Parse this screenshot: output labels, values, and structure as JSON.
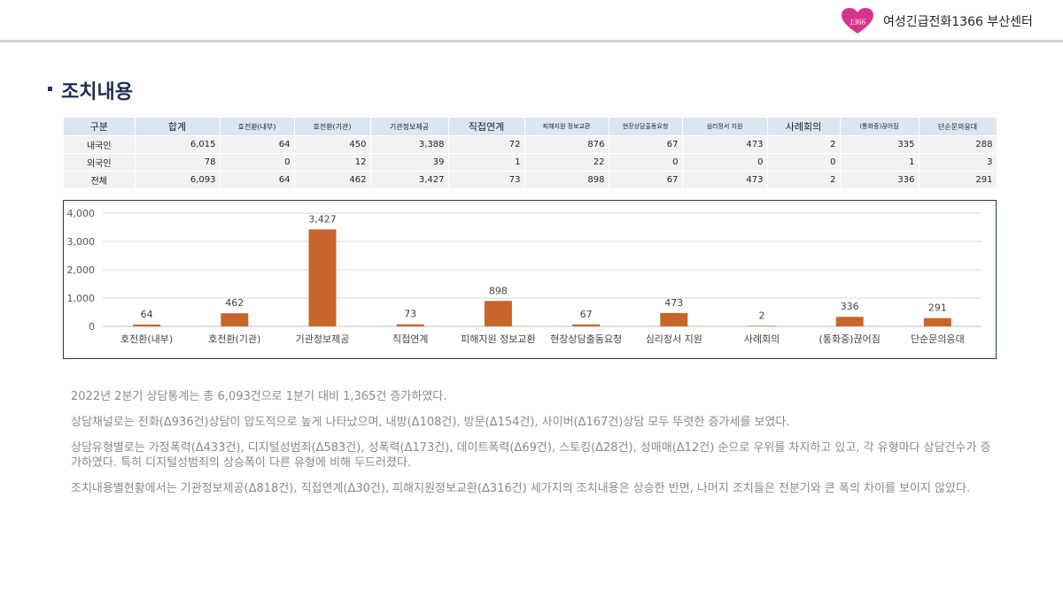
{
  "header": {
    "org_name": "여성긴급전화1366 부산센터",
    "logo_text": "1366"
  },
  "section": {
    "title": "조치내용"
  },
  "table": {
    "headers": [
      "구분",
      "합계",
      "호전환(내부)",
      "호전환(기관)",
      "기관정보제공",
      "직접연계",
      "피해지원 정보교환",
      "현장상담출동요청",
      "심리정서 지원",
      "사례회의",
      "(통화중)끊어짐",
      "단순문의응대"
    ],
    "rows": [
      {
        "label": "내국인",
        "cells": [
          "6,015",
          "64",
          "450",
          "3,388",
          "72",
          "876",
          "67",
          "473",
          "2",
          "335",
          "288"
        ]
      },
      {
        "label": "외국인",
        "cells": [
          "78",
          "0",
          "12",
          "39",
          "1",
          "22",
          "0",
          "0",
          "0",
          "1",
          "3"
        ]
      },
      {
        "label": "전체",
        "cells": [
          "6,093",
          "64",
          "462",
          "3,427",
          "73",
          "898",
          "67",
          "473",
          "2",
          "336",
          "291"
        ]
      }
    ]
  },
  "chart_data": {
    "type": "bar",
    "categories": [
      "호전환(내부)",
      "호전환(기관)",
      "기관정보제공",
      "직접연계",
      "피해지원 정보교환",
      "현장상담출동요청",
      "심리정서 지원",
      "사례회의",
      "(통화중)끊어짐",
      "단순문의응대"
    ],
    "values": [
      64,
      462,
      3427,
      73,
      898,
      67,
      473,
      2,
      336,
      291
    ],
    "value_labels": [
      "64",
      "462",
      "3,427",
      "73",
      "898",
      "67",
      "473",
      "2",
      "336",
      "291"
    ],
    "y_ticks": [
      "0",
      "1,000",
      "2,000",
      "3,000",
      "4,000"
    ],
    "ylim": [
      0,
      4000
    ],
    "grid": true,
    "bar_color": "#c8652a"
  },
  "summary": [
    "2022년 2분기 상담통계는 총 6,093건으로 1분기 대비 1,365건 증가하였다.",
    "상담채널로는 전화(Δ936건)상담이 압도적으로 높게 나타났으며, 내방(Δ108건), 방문(Δ154건), 사이버(Δ167건)상담 모두 뚜렷한 증가세를 보였다.",
    "상담유형별로는 가정폭력(Δ433건), 디지털성범죄(Δ583건), 성폭력(Δ173건), 데이트폭력(Δ69건), 스토킹(Δ28건), 성매매(Δ12건) 순으로 우위를 차지하고 있고, 각 유형마다 상담건수가 증가하였다. 특히 디지털성범죄의 상승폭이 다른 유형에 비해 두드러졌다.",
    "조치내용별현황에서는 기관정보제공(Δ818건), 직접연계(Δ30건), 피해지원정보교환(Δ316건) 세가지의 조치내용은 상승한 반면, 나머지 조치들은 전분기와 큰 폭의 차이를 보이지 않았다."
  ]
}
